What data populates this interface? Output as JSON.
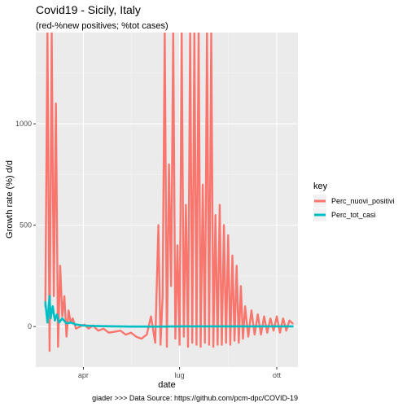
{
  "chart_data": {
    "type": "line",
    "title": "Covid19 - Sicily, Italy",
    "subtitle": "(red-%new positives; %tot cases)",
    "xlabel": "date",
    "ylabel": "Growth rate (%) d/d",
    "caption": "giader >>>  Data Source: https://github.com/pcm-dpc/COVID-19",
    "x_ticks": [
      {
        "label": "apr",
        "date": "2020-04-01"
      },
      {
        "label": "lug",
        "date": "2020-07-01"
      },
      {
        "label": "ott",
        "date": "2020-10-01"
      }
    ],
    "y_ticks": [
      0,
      500,
      1000
    ],
    "ylim": [
      -200,
      1450
    ],
    "xlim": [
      "2020-02-16",
      "2020-10-21"
    ],
    "legend": {
      "title": "key",
      "position": "right"
    },
    "colors": {
      "Perc_nuovi_positivi": "#F8766D",
      "Perc_tot_casi": "#00BFC4"
    },
    "series": [
      {
        "name": "Perc_nuovi_positivi",
        "x": [
          "2020-02-25",
          "2020-02-27",
          "2020-02-29",
          "2020-03-02",
          "2020-03-04",
          "2020-03-06",
          "2020-03-08",
          "2020-03-10",
          "2020-03-12",
          "2020-03-14",
          "2020-03-16",
          "2020-03-18",
          "2020-03-20",
          "2020-03-22",
          "2020-03-25",
          "2020-03-29",
          "2020-04-02",
          "2020-04-06",
          "2020-04-10",
          "2020-04-15",
          "2020-04-20",
          "2020-04-25",
          "2020-05-01",
          "2020-05-06",
          "2020-05-11",
          "2020-05-16",
          "2020-05-21",
          "2020-05-26",
          "2020-05-31",
          "2020-06-04",
          "2020-06-08",
          "2020-06-11",
          "2020-06-13",
          "2020-06-15",
          "2020-06-17",
          "2020-06-19",
          "2020-06-21",
          "2020-06-23",
          "2020-06-25",
          "2020-06-27",
          "2020-06-29",
          "2020-07-01",
          "2020-07-03",
          "2020-07-05",
          "2020-07-07",
          "2020-07-09",
          "2020-07-11",
          "2020-07-13",
          "2020-07-15",
          "2020-07-17",
          "2020-07-19",
          "2020-07-21",
          "2020-07-23",
          "2020-07-25",
          "2020-07-27",
          "2020-07-29",
          "2020-07-31",
          "2020-08-02",
          "2020-08-04",
          "2020-08-06",
          "2020-08-08",
          "2020-08-10",
          "2020-08-12",
          "2020-08-14",
          "2020-08-16",
          "2020-08-18",
          "2020-08-20",
          "2020-08-22",
          "2020-08-24",
          "2020-08-26",
          "2020-08-28",
          "2020-08-30",
          "2020-09-01",
          "2020-09-04",
          "2020-09-07",
          "2020-09-10",
          "2020-09-13",
          "2020-09-16",
          "2020-09-19",
          "2020-09-22",
          "2020-09-25",
          "2020-09-28",
          "2020-10-01",
          "2020-10-04",
          "2020-10-07",
          "2020-10-10",
          "2020-10-13",
          "2020-10-16"
        ],
        "values": [
          100,
          1450,
          -120,
          1450,
          150,
          1100,
          -100,
          300,
          50,
          150,
          -50,
          80,
          20,
          40,
          -10,
          0,
          10,
          -10,
          5,
          -20,
          -10,
          -30,
          -25,
          -20,
          -40,
          -30,
          -50,
          -60,
          -40,
          50,
          -80,
          500,
          -90,
          150,
          1450,
          -100,
          800,
          200,
          1450,
          -60,
          400,
          -90,
          1450,
          -50,
          600,
          -100,
          1450,
          -80,
          1450,
          -90,
          1450,
          -100,
          700,
          -80,
          1450,
          -90,
          1450,
          -100,
          550,
          -90,
          600,
          -90,
          500,
          -80,
          450,
          -90,
          350,
          -70,
          300,
          -80,
          200,
          -60,
          100,
          -50,
          80,
          -40,
          60,
          -40,
          50,
          -30,
          40,
          -20,
          50,
          -30,
          40,
          -20,
          30,
          15
        ]
      },
      {
        "name": "Perc_tot_casi",
        "x": [
          "2020-02-25",
          "2020-02-27",
          "2020-02-29",
          "2020-03-01",
          "2020-03-03",
          "2020-03-05",
          "2020-03-07",
          "2020-03-09",
          "2020-03-12",
          "2020-03-16",
          "2020-03-20",
          "2020-03-25",
          "2020-04-01",
          "2020-04-10",
          "2020-04-20",
          "2020-05-01",
          "2020-05-15",
          "2020-06-01",
          "2020-06-15",
          "2020-07-01",
          "2020-07-15",
          "2020-08-01",
          "2020-08-15",
          "2020-09-01",
          "2020-09-15",
          "2020-10-01",
          "2020-10-16"
        ],
        "values": [
          120,
          20,
          150,
          40,
          100,
          30,
          60,
          20,
          40,
          15,
          20,
          10,
          5,
          3,
          2,
          1,
          0,
          0,
          0,
          1,
          1,
          1,
          1,
          1,
          1,
          1,
          1
        ]
      }
    ]
  }
}
